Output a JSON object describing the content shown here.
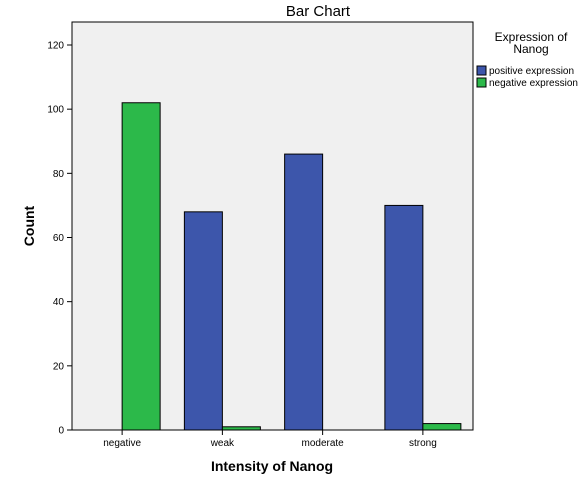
{
  "chart_data": {
    "type": "bar",
    "title": "Bar Chart",
    "xlabel": "Intensity of Nanog",
    "ylabel": "Count",
    "categories": [
      "negative",
      "weak",
      "moderate",
      "strong"
    ],
    "series": [
      {
        "name": "positive expression",
        "values": [
          0,
          68,
          86,
          70
        ],
        "color": "#3d56ab"
      },
      {
        "name": "negative expression",
        "values": [
          102,
          1,
          0,
          2
        ],
        "color": "#2cb94a"
      }
    ],
    "ylim": [
      0,
      120
    ],
    "yticks": [
      0,
      20,
      40,
      60,
      80,
      100,
      120
    ],
    "grid": false,
    "legend": {
      "title": "Expression of Nanog",
      "title_lines": [
        "Expression of",
        "Nanog"
      ],
      "placement": "right"
    },
    "plot_background": "#f0f0f0"
  }
}
